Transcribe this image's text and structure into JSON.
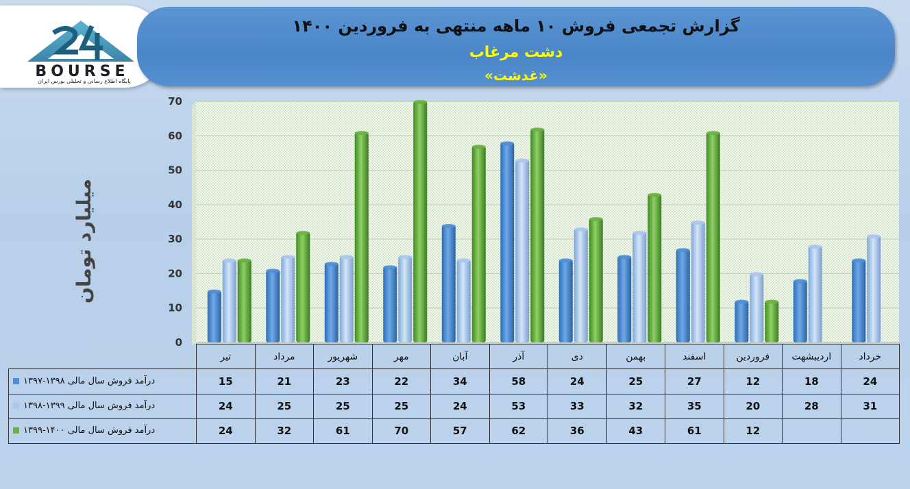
{
  "title": {
    "line1": "گزارش تجمعی فروش ۱۰ ماهه منتهی به فروردین ۱۴۰۰",
    "line2": "دشت مرغاب",
    "line3": "«غدشت»"
  },
  "logo": {
    "main": "BOURSE",
    "sub": "پایگاه اطلاع رسانی و تحلیلی بورس ایران",
    "icon": "24-logo"
  },
  "colors": {
    "series1": "#4f8fd6",
    "series2": "#a9c8ec",
    "series3": "#6bb043"
  },
  "chart_data": {
    "type": "bar",
    "ylabel": "میلیارد تومان",
    "ylim": [
      0,
      70
    ],
    "yticks": [
      0,
      10,
      20,
      30,
      40,
      50,
      60,
      70
    ],
    "grid": true,
    "categories": [
      "تیر",
      "مرداد",
      "شهریور",
      "مهر",
      "آبان",
      "آذر",
      "دی",
      "بهمن",
      "اسفند",
      "فروردین",
      "اردیبشهت",
      "خرداد"
    ],
    "series": [
      {
        "name": "درآمد فروش سال مالی ۱۳۹۸-۱۳۹۷",
        "values": [
          15,
          21,
          23,
          22,
          34,
          58,
          24,
          25,
          27,
          12,
          18,
          24
        ]
      },
      {
        "name": "درآمد فروش سال مالی ۱۳۹۹-۱۳۹۸",
        "values": [
          24,
          25,
          25,
          25,
          24,
          53,
          33,
          32,
          35,
          20,
          28,
          31
        ]
      },
      {
        "name": "درآمد فروش سال مالی ۱۴۰۰-۱۳۹۹",
        "values": [
          24,
          32,
          61,
          70,
          57,
          62,
          36,
          43,
          61,
          12,
          null,
          null
        ]
      }
    ]
  }
}
